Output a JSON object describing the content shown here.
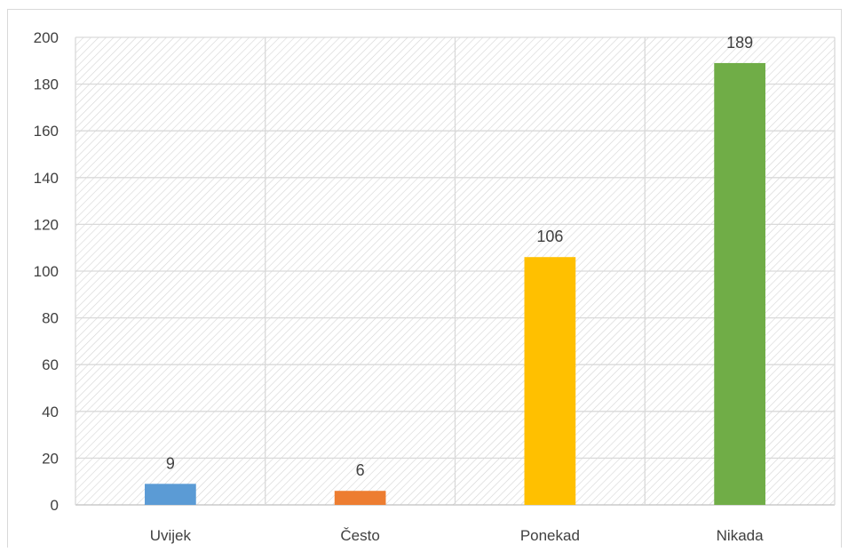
{
  "chart_data": {
    "type": "bar",
    "title": "",
    "xlabel": "",
    "ylabel": "",
    "categories": [
      "Uvijek",
      "Često",
      "Ponekad",
      "Nikada"
    ],
    "values": [
      9,
      6,
      106,
      189
    ],
    "data_labels": [
      "9",
      "6",
      "106",
      "189"
    ],
    "colors": [
      "#5b9bd5",
      "#ed7d31",
      "#ffc000",
      "#70ad47"
    ],
    "ylim": [
      0,
      200
    ],
    "yticks": [
      0,
      20,
      40,
      60,
      80,
      100,
      120,
      140,
      160,
      180,
      200
    ],
    "ytick_labels": [
      "0",
      "20",
      "40",
      "60",
      "80",
      "100",
      "120",
      "140",
      "160",
      "180",
      "200"
    ],
    "grid": true,
    "plot_background": "diagonal-hatch",
    "legend": "none"
  }
}
